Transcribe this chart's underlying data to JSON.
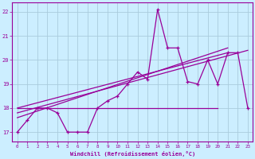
{
  "xlabel": "Windchill (Refroidissement éolien,°C)",
  "bg_color": "#cceeff",
  "line_color": "#990099",
  "grid_color": "#aaccdd",
  "xlim": [
    -0.5,
    23.5
  ],
  "ylim": [
    16.6,
    22.4
  ],
  "xticks": [
    0,
    1,
    2,
    3,
    4,
    5,
    6,
    7,
    8,
    9,
    10,
    11,
    12,
    13,
    14,
    15,
    16,
    17,
    18,
    19,
    20,
    21,
    22,
    23
  ],
  "yticks": [
    17,
    18,
    19,
    20,
    21,
    22
  ],
  "main_x": [
    0,
    1,
    2,
    3,
    4,
    5,
    6,
    7,
    8,
    9,
    10,
    11,
    12,
    13,
    14,
    15,
    16,
    17,
    18,
    19,
    20,
    21,
    22,
    23
  ],
  "main_y": [
    17.0,
    17.5,
    18.0,
    18.0,
    17.8,
    17.0,
    17.0,
    17.0,
    18.0,
    18.3,
    18.5,
    19.0,
    19.5,
    19.2,
    22.1,
    20.5,
    20.5,
    19.1,
    19.0,
    20.0,
    19.0,
    20.3,
    20.3,
    18.0
  ],
  "trend1_x": [
    0,
    23
  ],
  "trend1_y": [
    17.8,
    20.4
  ],
  "trend2_x": [
    0,
    20
  ],
  "trend2_y": [
    18.0,
    18.0
  ],
  "trend3_x": [
    0,
    21
  ],
  "trend3_y": [
    17.6,
    20.5
  ],
  "trend4_x": [
    0,
    21
  ],
  "trend4_y": [
    18.0,
    20.3
  ]
}
